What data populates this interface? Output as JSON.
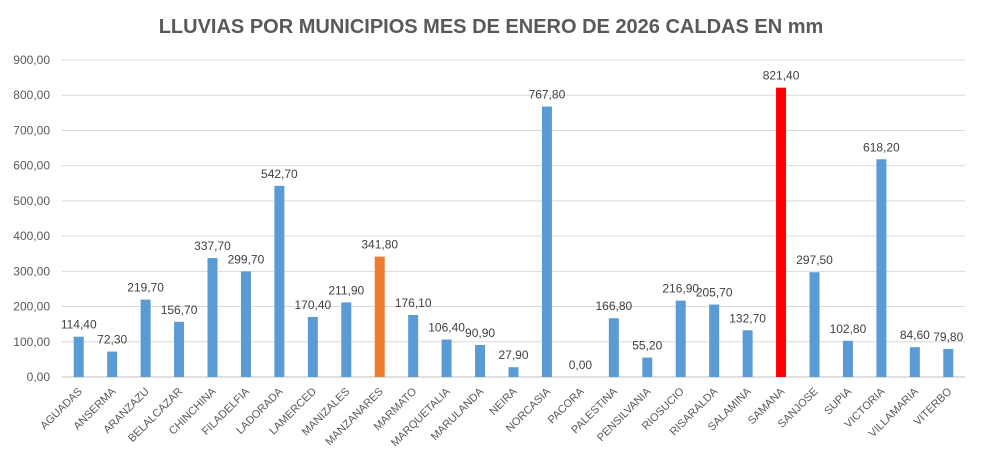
{
  "chart_data": {
    "type": "bar",
    "title": "LLUVIAS POR MUNICIPIOS MES DE ENERO DE 2026 CALDAS EN mm",
    "xlabel": "",
    "ylabel": "",
    "ylim": [
      0,
      900
    ],
    "yticks": [
      0,
      100,
      200,
      300,
      400,
      500,
      600,
      700,
      800,
      900
    ],
    "ytick_labels": [
      "0,00",
      "100,00",
      "200,00",
      "300,00",
      "400,00",
      "500,00",
      "600,00",
      "700,00",
      "800,00",
      "900,00"
    ],
    "grid": true,
    "categories": [
      "AGUADAS",
      "ANSERMA",
      "ARANZAZU",
      "BELALCAZAR",
      "CHINCHINA",
      "FILADELFIA",
      "LADORADA",
      "LAMERCED",
      "MANIZALES",
      "MANZANARES",
      "MARMATO",
      "MARQUETALIA",
      "MARULANDA",
      "NEIRA",
      "NORCASIA",
      "PACORA",
      "PALESTINA",
      "PENSILVANIA",
      "RIOSUCIO",
      "RISARALDA",
      "SALAMINA",
      "SAMANA",
      "SANJOSE",
      "SUPIA",
      "VICTORIA",
      "VILLAMARIA",
      "VITERBO"
    ],
    "values": [
      114.4,
      72.3,
      219.7,
      156.7,
      337.7,
      299.7,
      542.7,
      170.4,
      211.9,
      341.8,
      176.1,
      106.4,
      90.9,
      27.9,
      767.8,
      0.0,
      166.8,
      55.2,
      216.9,
      205.7,
      132.7,
      821.4,
      297.5,
      102.8,
      618.2,
      84.6,
      79.8
    ],
    "data_labels": [
      "114,40",
      "72,30",
      "219,70",
      "156,70",
      "337,70",
      "299,70",
      "542,70",
      "170,40",
      "211,90",
      "341,80",
      "176,10",
      "106,40",
      "90,90",
      "27,90",
      "767,80",
      "0,00",
      "166,80",
      "55,20",
      "216,90",
      "205,70",
      "132,70",
      "821,40",
      "297,50",
      "102,80",
      "618,20",
      "84,60",
      "79,80"
    ],
    "default_color": "#5B9BD5",
    "highlight_colors": {
      "MANZANARES": "#ED7D31",
      "SAMANA": "#FF0000"
    }
  }
}
